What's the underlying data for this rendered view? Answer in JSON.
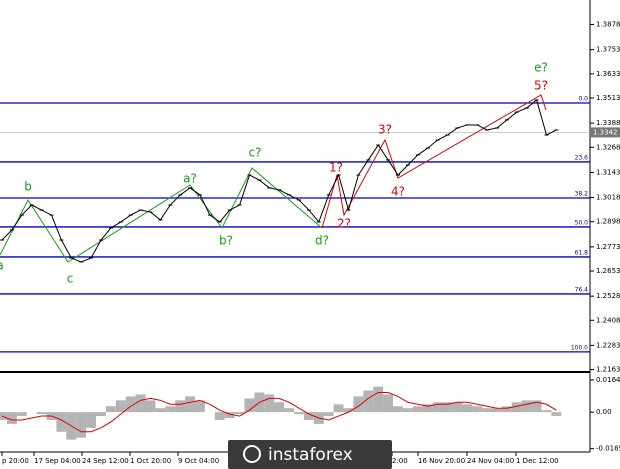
{
  "chart_data": [
    {
      "type": "line",
      "color": "#000000",
      "values": [
        1.2807,
        1.2857,
        1.2931,
        1.2981,
        1.2956,
        1.2931,
        1.2807,
        1.2718,
        1.2698,
        1.2718,
        1.2807,
        1.2867,
        1.2897,
        1.2931,
        1.2956,
        1.2946,
        1.2907,
        1.2981,
        1.3031,
        1.3066,
        1.3031,
        1.2931,
        1.2897,
        1.2956,
        1.2981,
        1.313,
        1.3105,
        1.3066,
        1.3056,
        1.3031,
        1.3006,
        1.2956,
        1.2897,
        1.3031,
        1.313,
        1.2956,
        1.313,
        1.3205,
        1.3279,
        1.3205,
        1.313,
        1.318,
        1.323,
        1.3264,
        1.3304,
        1.3329,
        1.3364,
        1.3379,
        1.3379,
        1.3354,
        1.3364,
        1.3404,
        1.3443,
        1.3463,
        1.3503,
        1.3329,
        1.3354
      ],
      "ylim": [
        1.2151,
        1.4
      ],
      "yticks": [
        1.3878,
        1.3753,
        1.3633,
        1.3513,
        1.3388,
        1.3268,
        1.3143,
        1.3018,
        1.2898,
        1.2773,
        1.2653,
        1.2528,
        1.2408,
        1.2283,
        1.2163
      ],
      "current_price": 1.3342,
      "fib_levels": [
        {
          "label": "0.0",
          "price": 1.3488
        },
        {
          "label": "23.6",
          "price": 1.3195
        },
        {
          "label": "38.2",
          "price": 1.3016
        },
        {
          "label": "50.0",
          "price": 1.2872
        },
        {
          "label": "61.8",
          "price": 1.2723
        },
        {
          "label": "76.4",
          "price": 1.2539
        },
        {
          "label": "100.0",
          "price": 1.2251
        }
      ],
      "fib_color": "#0000cc",
      "annotations_green": [
        "a",
        "b",
        "c",
        "a?",
        "b?",
        "c?",
        "d?",
        "e?"
      ],
      "annotations_red": [
        "1?",
        "2?",
        "3?",
        "4?",
        "5?"
      ],
      "x_labels": [
        "p 20:00",
        "17 Sep 04:00",
        "24 Sep 12:00",
        "1 Oct 20:00",
        "9 Oct 04:00",
        "2:00",
        "16 Nov 20:00",
        "24 Nov 04:00",
        "1 Dec 12:00"
      ]
    },
    {
      "type": "macd",
      "histogram_color": "#b4b4b4",
      "signal_color": "#e00000",
      "histogram": [
        -0.004,
        -0.006,
        -0.002,
        0.0,
        -0.001,
        -0.004,
        -0.01,
        -0.014,
        -0.013,
        -0.008,
        -0.002,
        0.003,
        0.006,
        0.008,
        0.009,
        0.006,
        0.002,
        0.003,
        0.006,
        0.008,
        0.006,
        0.0,
        -0.004,
        -0.003,
        -0.001,
        0.007,
        0.01,
        0.009,
        0.005,
        0.002,
        -0.001,
        -0.004,
        -0.006,
        -0.002,
        0.004,
        0.002,
        0.008,
        0.011,
        0.013,
        0.009,
        0.003,
        0.002,
        0.003,
        0.004,
        0.005,
        0.005,
        0.005,
        0.004,
        0.003,
        0.002,
        0.002,
        0.003,
        0.005,
        0.006,
        0.006,
        0.001,
        -0.002
      ],
      "signal": [
        -0.002,
        -0.004,
        -0.004,
        -0.003,
        -0.002,
        -0.002,
        -0.004,
        -0.007,
        -0.01,
        -0.01,
        -0.008,
        -0.005,
        -0.001,
        0.003,
        0.006,
        0.007,
        0.006,
        0.004,
        0.004,
        0.005,
        0.006,
        0.004,
        0.001,
        -0.001,
        -0.002,
        0.001,
        0.005,
        0.007,
        0.007,
        0.005,
        0.002,
        -0.001,
        -0.003,
        -0.004,
        -0.002,
        0.0,
        0.003,
        0.007,
        0.01,
        0.01,
        0.008,
        0.005,
        0.004,
        0.003,
        0.004,
        0.004,
        0.005,
        0.005,
        0.004,
        0.003,
        0.002,
        0.002,
        0.003,
        0.004,
        0.005,
        0.004,
        0.001
      ],
      "ylim": [
        -0.0203,
        0.0189
      ],
      "yticks": [
        0.0164,
        {
          "value": 0,
          "label": "0.00"
        },
        -0.01859
      ]
    }
  ],
  "watermark": "instaforex"
}
